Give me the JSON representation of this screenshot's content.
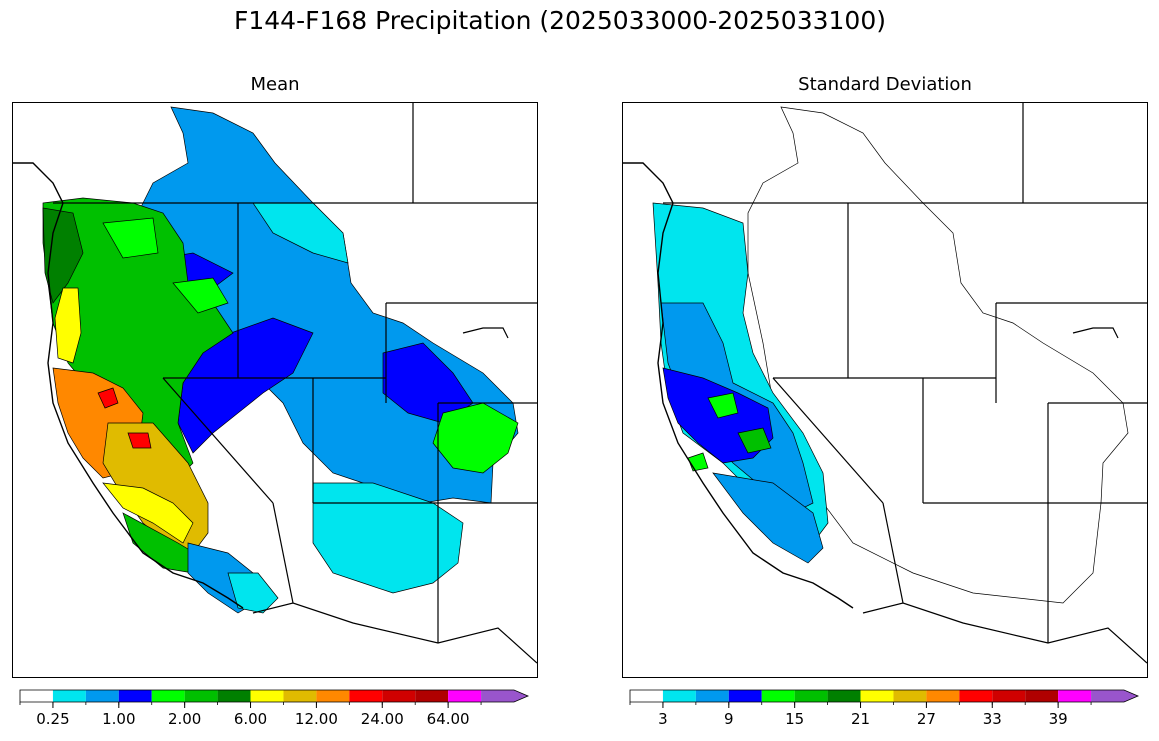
{
  "title": "F144-F168 Precipitation (2025033000-2025033100)",
  "panels": [
    {
      "id": "mean",
      "title": "Mean",
      "colorbar": {
        "colors": [
          "#ffffff",
          "#00e5ee",
          "#0099ee",
          "#0000ff",
          "#00ff00",
          "#00c000",
          "#008000",
          "#ffff00",
          "#e0bb00",
          "#ff8800",
          "#ff0000",
          "#d00000",
          "#b00000",
          "#ff00ff",
          "#9955cc"
        ],
        "tick_labels": [
          "0.25",
          "1.00",
          "2.00",
          "6.00",
          "12.00",
          "24.00",
          "64.00"
        ],
        "extend": "max"
      }
    },
    {
      "id": "stddev",
      "title": "Standard Deviation",
      "colorbar": {
        "colors": [
          "#ffffff",
          "#00e5ee",
          "#0099ee",
          "#0000ff",
          "#00ff00",
          "#00c000",
          "#008000",
          "#ffff00",
          "#e0bb00",
          "#ff8800",
          "#ff0000",
          "#d00000",
          "#b00000",
          "#ff00ff",
          "#9955cc"
        ],
        "tick_labels": [
          "3",
          "9",
          "15",
          "21",
          "27",
          "33",
          "39"
        ],
        "extend": "max"
      }
    }
  ]
}
